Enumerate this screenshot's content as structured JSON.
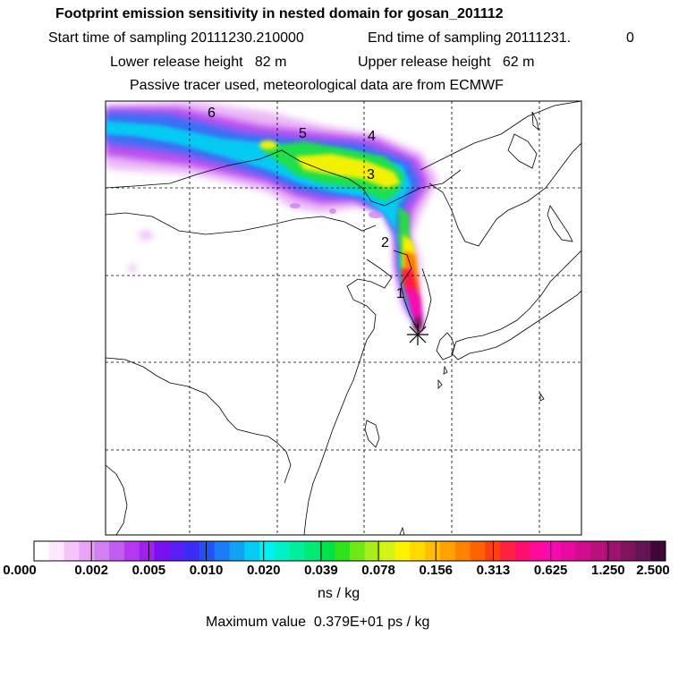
{
  "header": {
    "title": "Footprint emission sensitivity in nested domain for gosan_201112",
    "start_time": "Start time of sampling 20111230.210000",
    "end_time": "End time of sampling 20111231.",
    "end_time_suffix": "0",
    "lower_release": "Lower release height   82 m",
    "upper_release": "Upper release height   62 m",
    "tracer_note": "Passive tracer used, meteorological data are from ECMWF"
  },
  "map": {
    "track_labels": [
      "1",
      "2",
      "3",
      "4",
      "5",
      "6"
    ],
    "receptor_marker": "star-icon"
  },
  "colorbar": {
    "tick_labels": [
      "0.000",
      "0.002",
      "0.005",
      "0.010",
      "0.020",
      "0.039",
      "0.078",
      "0.156",
      "0.313",
      "0.625",
      "1.250",
      "2.500"
    ],
    "colors": [
      "#ffffff",
      "#ffe8ff",
      "#f7c3fb",
      "#e9a3f7",
      "#d27ff4",
      "#c55cf0",
      "#b537ef",
      "#a31ff0",
      "#7b0ff2",
      "#5a1ef5",
      "#3a2cf6",
      "#2353f7",
      "#1a7bf5",
      "#10a3f3",
      "#05cdf2",
      "#00f0f2",
      "#00f1c8",
      "#00ee9e",
      "#00ea74",
      "#00e34a",
      "#2fe21c",
      "#6fe81a",
      "#a8ee1a",
      "#d6f318",
      "#fff200",
      "#ffd900",
      "#ffbe00",
      "#ffa100",
      "#ff8300",
      "#ff6300",
      "#ff3f10",
      "#ff1f40",
      "#ff0e70",
      "#ff0a9d",
      "#f70ab1",
      "#e80aa0",
      "#d10c8e",
      "#b8117e",
      "#9d136d",
      "#81135d",
      "#641353",
      "#40063a"
    ],
    "units": "ns / kg"
  },
  "footer": {
    "max_value": "Maximum value  0.379E+01 ps / kg"
  }
}
